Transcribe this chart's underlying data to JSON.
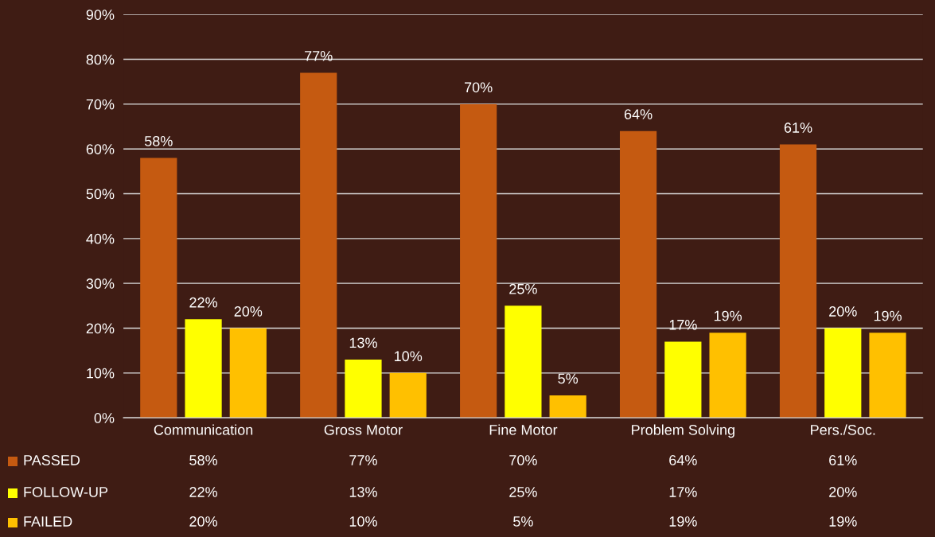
{
  "chart_data": {
    "type": "bar",
    "categories": [
      "Communication",
      "Gross Motor",
      "Fine Motor",
      "Problem Solving",
      "Pers./Soc."
    ],
    "series": [
      {
        "name": "PASSED",
        "color": "#c55a11",
        "values": [
          58,
          77,
          70,
          64,
          61
        ],
        "value_labels": [
          "58%",
          "77%",
          "70%",
          "64%",
          "61%"
        ]
      },
      {
        "name": "FOLLOW-UP",
        "color": "#ffff00",
        "values": [
          22,
          13,
          25,
          17,
          20
        ],
        "value_labels": [
          "22%",
          "13%",
          "25%",
          "17%",
          "20%"
        ]
      },
      {
        "name": "FAILED",
        "color": "#ffc000",
        "values": [
          20,
          10,
          5,
          19,
          19
        ],
        "value_labels": [
          "20%",
          "10%",
          "5%",
          "19%",
          "19%"
        ]
      }
    ],
    "ylim": [
      0,
      90
    ],
    "yticks": [
      {
        "value": 0,
        "label": "0%"
      },
      {
        "value": 10,
        "label": "10%"
      },
      {
        "value": 20,
        "label": "20%"
      },
      {
        "value": 30,
        "label": "30%"
      },
      {
        "value": 40,
        "label": "40%"
      },
      {
        "value": 50,
        "label": "50%"
      },
      {
        "value": 60,
        "label": "60%"
      },
      {
        "value": 70,
        "label": "70%"
      },
      {
        "value": 80,
        "label": "80%"
      },
      {
        "value": 90,
        "label": "90%"
      }
    ],
    "grid": "y",
    "legend": "bottom left"
  }
}
